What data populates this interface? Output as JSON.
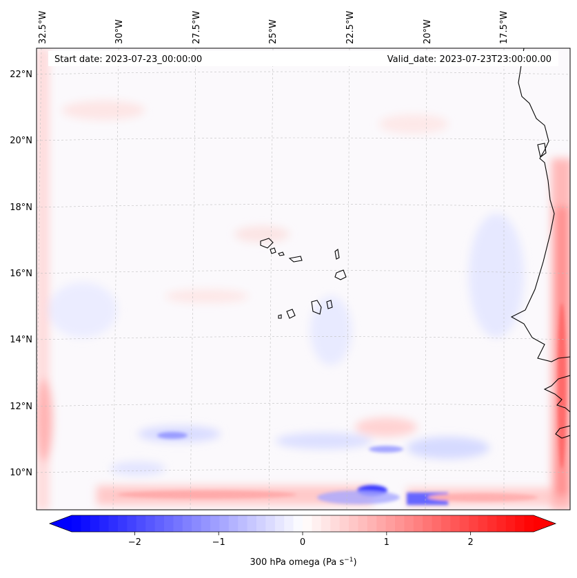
{
  "map": {
    "start_date": "Start date: 2023-07-23_00:00:00",
    "valid_date": "Valid_date: 2023-07-23T23:00:00.00",
    "lon_labels": [
      "32.5°W",
      "30°W",
      "27.5°W",
      "25°W",
      "22.5°W",
      "20°W",
      "17.5°W"
    ],
    "lat_labels": [
      "22°N",
      "20°N",
      "18°N",
      "16°N",
      "14°N",
      "12°N",
      "10°N"
    ],
    "extent": {
      "lon_min": -32.7,
      "lon_max": -15.2,
      "lat_min": 8.9,
      "lat_max": 22.8
    },
    "coastline_color": "#000000",
    "gridline_color": "#bfbfbf"
  },
  "colorbar": {
    "label_prefix": "300 hPa omega (Pa s",
    "label_exp": "−1",
    "label_suffix": ")",
    "ticks": [
      {
        "value": -2,
        "text": "−2"
      },
      {
        "value": -1,
        "text": "−1"
      },
      {
        "value": 0,
        "text": "0"
      },
      {
        "value": 1,
        "text": "1"
      },
      {
        "value": 2,
        "text": "2"
      }
    ],
    "vmin": -2.75,
    "vmax": 2.75,
    "colormap": "bwr",
    "color_min": "#0000ff",
    "color_mid": "#ffffff",
    "color_max": "#ff0000",
    "extend": "both"
  }
}
